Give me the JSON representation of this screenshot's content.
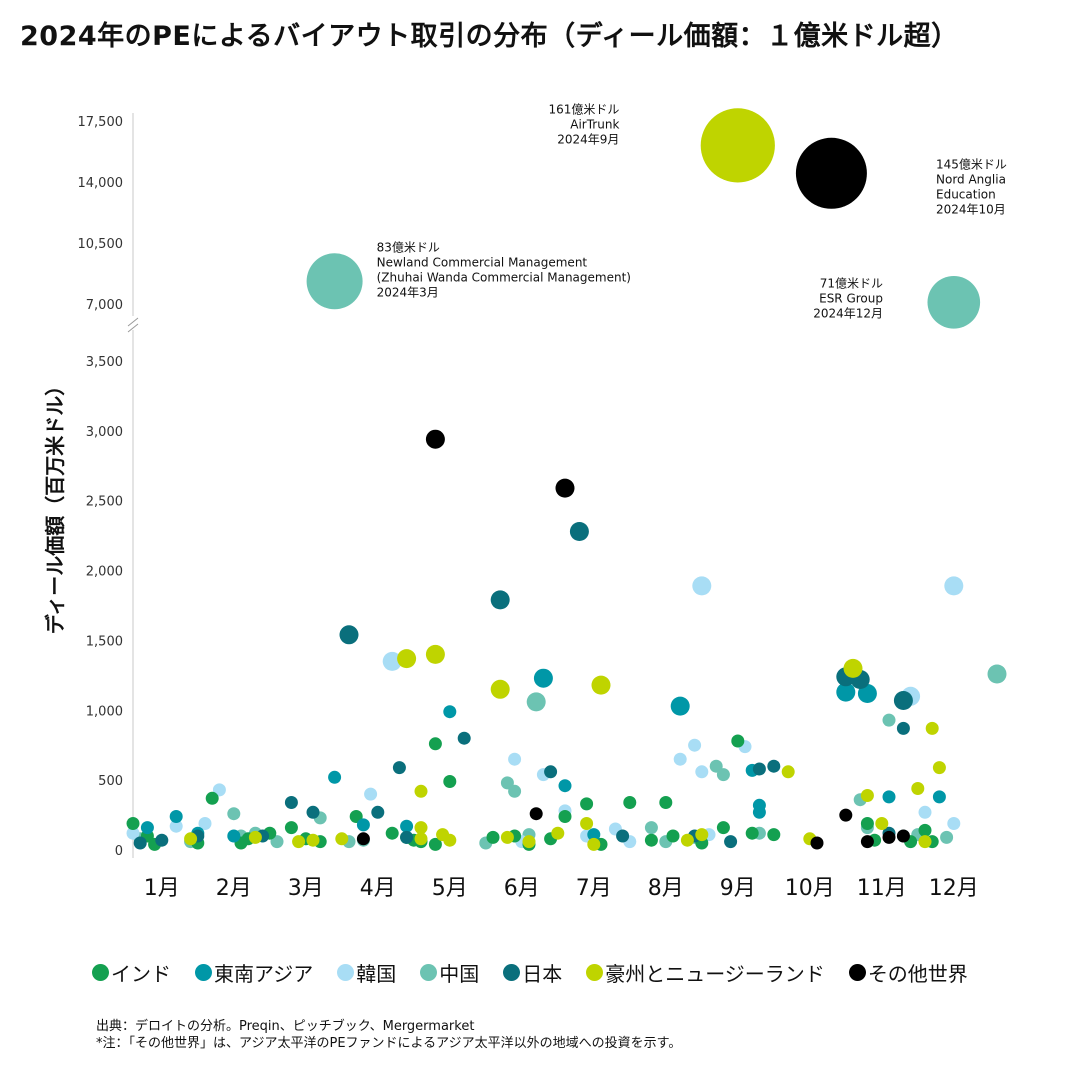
{
  "title": "2024年のPEによるバイアウト取引の分布（ディール価額：１億米ドル超）",
  "colors": {
    "india": "#14a050",
    "sea": "#0097a7",
    "korea": "#a8ddf5",
    "china": "#6cc3b2",
    "japan": "#0a6f7c",
    "anz": "#bfd400",
    "other": "#000000"
  },
  "legend": [
    {
      "key": "india",
      "label": "インド"
    },
    {
      "key": "sea",
      "label": "東南アジア"
    },
    {
      "key": "korea",
      "label": "韓国"
    },
    {
      "key": "china",
      "label": "中国"
    },
    {
      "key": "japan",
      "label": "日本"
    },
    {
      "key": "anz",
      "label": "豪州とニュージーランド"
    },
    {
      "key": "other",
      "label": "その他世界"
    }
  ],
  "footer": {
    "source": "出典：デロイトの分析。Preqin、ピッチブック、Mergermarket",
    "note": "*注：「その他世界」は、アジア太平洋のPEファンドによるアジア太平洋以外の地域への投資を示す。"
  },
  "chart_data": {
    "type": "scatter",
    "ylabel": "ディール価額（百万米ドル）",
    "y_lower_ticks": [
      "0",
      "500",
      "1,000",
      "1,500",
      "2,000",
      "2,500",
      "3,000",
      "3,500"
    ],
    "y_lower_range": [
      0,
      3500
    ],
    "y_upper_ticks": [
      "7,000",
      "10,500",
      "14,000",
      "17,500"
    ],
    "y_upper_range": [
      7000,
      17500
    ],
    "x_ticks": [
      "1月",
      "2月",
      "3月",
      "4月",
      "5月",
      "6月",
      "7月",
      "8月",
      "9月",
      "10月",
      "11月",
      "12月"
    ],
    "x_range": [
      0.6,
      12.6
    ],
    "annotations": [
      {
        "lines": [
          "83億米ドル",
          "Newland Commercial Management",
          "(Zhuhai Wanda Commercial Management)",
          "2024年3月"
        ],
        "align": "left",
        "anchor_x": 3.4,
        "anchor_y": 8300
      },
      {
        "lines": [
          "161億米ドル",
          "AirTrunk",
          "2024年9月"
        ],
        "align": "right",
        "anchor_x": 8.3,
        "anchor_y": 16100
      },
      {
        "lines": [
          "145億米ドル",
          "Nord Anglia",
          "Education",
          "2024年10月"
        ],
        "align": "left",
        "anchor_x": 11.1,
        "anchor_y": 14500
      },
      {
        "lines": [
          "71億米ドル",
          "ESR Group",
          "2024年12月"
        ],
        "align": "right",
        "anchor_x": 11.6,
        "anchor_y": 7100
      }
    ],
    "large_points": [
      {
        "x": 3.4,
        "y": 8300,
        "value_bn": 8.3,
        "series": "china"
      },
      {
        "x": 9.0,
        "y": 16100,
        "value_bn": 16.1,
        "series": "anz"
      },
      {
        "x": 10.3,
        "y": 14500,
        "value_bn": 14.5,
        "series": "other"
      },
      {
        "x": 12.0,
        "y": 7100,
        "value_bn": 7.1,
        "series": "china"
      }
    ],
    "series": [
      {
        "key": "india",
        "name": "インド",
        "points": [
          [
            0.6,
            190
          ],
          [
            0.8,
            100
          ],
          [
            0.9,
            40
          ],
          [
            1.5,
            50
          ],
          [
            1.7,
            370
          ],
          [
            2.1,
            50
          ],
          [
            2.2,
            80
          ],
          [
            2.5,
            120
          ],
          [
            2.8,
            160
          ],
          [
            3.0,
            80
          ],
          [
            3.2,
            60
          ],
          [
            3.7,
            240
          ],
          [
            4.2,
            120
          ],
          [
            4.4,
            90
          ],
          [
            4.5,
            70
          ],
          [
            4.6,
            60
          ],
          [
            4.8,
            40
          ],
          [
            4.8,
            760
          ],
          [
            5.0,
            490
          ],
          [
            5.6,
            90
          ],
          [
            5.9,
            100
          ],
          [
            6.1,
            40
          ],
          [
            6.4,
            80
          ],
          [
            6.6,
            240
          ],
          [
            6.9,
            330
          ],
          [
            7.1,
            40
          ],
          [
            7.5,
            340
          ],
          [
            7.8,
            70
          ],
          [
            8.0,
            340
          ],
          [
            8.1,
            100
          ],
          [
            8.5,
            50
          ],
          [
            8.8,
            160
          ],
          [
            9.0,
            780
          ],
          [
            9.2,
            120
          ],
          [
            9.5,
            110
          ],
          [
            10.8,
            190
          ],
          [
            10.9,
            70
          ],
          [
            11.4,
            60
          ],
          [
            11.6,
            140
          ],
          [
            11.7,
            60
          ]
        ]
      },
      {
        "key": "sea",
        "name": "東南アジア",
        "points": [
          [
            0.8,
            160
          ],
          [
            1.2,
            240
          ],
          [
            1.5,
            120
          ],
          [
            2.0,
            100
          ],
          [
            3.4,
            520
          ],
          [
            3.8,
            180
          ],
          [
            4.4,
            170
          ],
          [
            5.0,
            990
          ],
          [
            6.3,
            1230
          ],
          [
            6.6,
            460
          ],
          [
            7.0,
            110
          ],
          [
            8.2,
            1030
          ],
          [
            9.2,
            570
          ],
          [
            9.3,
            320
          ],
          [
            9.3,
            270
          ],
          [
            10.5,
            1130
          ],
          [
            10.8,
            1120
          ],
          [
            11.1,
            380
          ],
          [
            11.8,
            380
          ]
        ]
      },
      {
        "key": "korea",
        "name": "韓国",
        "points": [
          [
            0.6,
            120
          ],
          [
            1.2,
            170
          ],
          [
            1.6,
            190
          ],
          [
            1.8,
            430
          ],
          [
            3.9,
            400
          ],
          [
            4.2,
            1350
          ],
          [
            5.9,
            650
          ],
          [
            6.0,
            60
          ],
          [
            6.3,
            540
          ],
          [
            6.6,
            280
          ],
          [
            6.9,
            100
          ],
          [
            7.3,
            150
          ],
          [
            7.5,
            60
          ],
          [
            8.2,
            650
          ],
          [
            8.4,
            750
          ],
          [
            8.5,
            560
          ],
          [
            8.5,
            1890
          ],
          [
            8.6,
            110
          ],
          [
            9.1,
            740
          ],
          [
            11.4,
            1100
          ],
          [
            11.6,
            270
          ],
          [
            12.0,
            1890
          ],
          [
            12.0,
            190
          ]
        ]
      },
      {
        "key": "china",
        "name": "中国",
        "points": [
          [
            0.7,
            80
          ],
          [
            1.4,
            60
          ],
          [
            2.0,
            260
          ],
          [
            2.1,
            100
          ],
          [
            2.3,
            120
          ],
          [
            2.6,
            60
          ],
          [
            3.2,
            230
          ],
          [
            3.6,
            60
          ],
          [
            3.8,
            70
          ],
          [
            5.5,
            50
          ],
          [
            5.8,
            480
          ],
          [
            5.9,
            420
          ],
          [
            6.1,
            110
          ],
          [
            6.2,
            1060
          ],
          [
            7.0,
            60
          ],
          [
            7.8,
            160
          ],
          [
            8.0,
            60
          ],
          [
            8.4,
            90
          ],
          [
            8.7,
            600
          ],
          [
            8.8,
            540
          ],
          [
            9.3,
            120
          ],
          [
            10.7,
            360
          ],
          [
            10.8,
            160
          ],
          [
            11.1,
            930
          ],
          [
            11.3,
            100
          ],
          [
            11.5,
            110
          ],
          [
            11.9,
            90
          ],
          [
            12.6,
            1260
          ]
        ]
      },
      {
        "key": "japan",
        "name": "日本",
        "points": [
          [
            0.7,
            50
          ],
          [
            1.0,
            70
          ],
          [
            1.5,
            100
          ],
          [
            2.4,
            100
          ],
          [
            2.8,
            340
          ],
          [
            3.1,
            270
          ],
          [
            3.6,
            1540
          ],
          [
            4.0,
            270
          ],
          [
            4.3,
            590
          ],
          [
            4.4,
            90
          ],
          [
            5.2,
            800
          ],
          [
            5.7,
            1790
          ],
          [
            6.4,
            560
          ],
          [
            6.8,
            2280
          ],
          [
            7.4,
            100
          ],
          [
            8.4,
            100
          ],
          [
            8.9,
            60
          ],
          [
            9.3,
            580
          ],
          [
            9.5,
            600
          ],
          [
            10.5,
            1240
          ],
          [
            10.7,
            1220
          ],
          [
            11.1,
            120
          ],
          [
            11.3,
            1070
          ],
          [
            11.3,
            870
          ]
        ]
      },
      {
        "key": "anz",
        "name": "豪州とニュージーランド",
        "points": [
          [
            1.4,
            80
          ],
          [
            2.3,
            90
          ],
          [
            2.9,
            60
          ],
          [
            3.1,
            70
          ],
          [
            3.5,
            80
          ],
          [
            4.4,
            1370
          ],
          [
            4.6,
            420
          ],
          [
            4.6,
            160
          ],
          [
            4.6,
            80
          ],
          [
            4.8,
            1400
          ],
          [
            4.9,
            110
          ],
          [
            5.0,
            70
          ],
          [
            5.7,
            1150
          ],
          [
            5.8,
            90
          ],
          [
            6.1,
            60
          ],
          [
            6.5,
            120
          ],
          [
            6.9,
            190
          ],
          [
            7.0,
            40
          ],
          [
            7.1,
            1180
          ],
          [
            8.3,
            70
          ],
          [
            8.5,
            110
          ],
          [
            9.7,
            560
          ],
          [
            10.0,
            80
          ],
          [
            10.6,
            1300
          ],
          [
            10.8,
            390
          ],
          [
            11.0,
            190
          ],
          [
            11.5,
            440
          ],
          [
            11.6,
            60
          ],
          [
            11.7,
            870
          ],
          [
            11.8,
            590
          ]
        ]
      },
      {
        "key": "other",
        "name": "その他世界",
        "points": [
          [
            3.8,
            80
          ],
          [
            4.8,
            2940
          ],
          [
            6.2,
            260
          ],
          [
            6.6,
            2590
          ],
          [
            10.1,
            50
          ],
          [
            10.5,
            250
          ],
          [
            10.8,
            60
          ],
          [
            11.1,
            90
          ],
          [
            11.3,
            100
          ]
        ]
      }
    ]
  }
}
